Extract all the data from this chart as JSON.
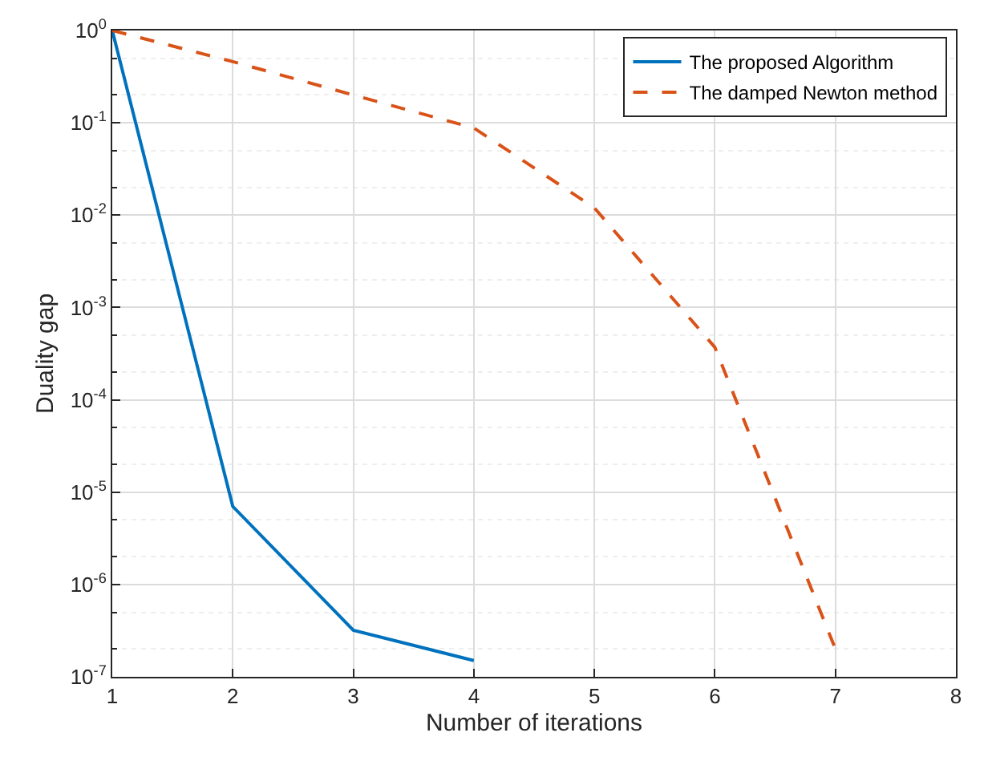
{
  "chart_data": {
    "type": "line",
    "xlabel": "Number of iterations",
    "ylabel": "Duality gap",
    "series": [
      {
        "name": "The proposed Algorithm",
        "color": "#0072bd",
        "line_style": "solid",
        "x": [
          1,
          2,
          3,
          4
        ],
        "values": [
          1,
          7e-06,
          3.2e-07,
          1.5e-07
        ]
      },
      {
        "name": "The damped Newton method",
        "color": "#d95319",
        "line_style": "dashed",
        "x": [
          1,
          2,
          3,
          4,
          5,
          6,
          7
        ],
        "values": [
          1,
          0.46,
          0.2,
          0.088,
          0.012,
          0.00037,
          2e-07
        ]
      }
    ],
    "log": "y",
    "xlim": [
      1,
      8
    ],
    "xticks": [
      1,
      2,
      3,
      4,
      5,
      6,
      7,
      8
    ],
    "ylim": [
      1e-07,
      1
    ],
    "yticks": [
      {
        "value": 1e-07,
        "label": "10$^{-7}$"
      },
      {
        "value": 1e-06,
        "label": "10$^{-6}$"
      },
      {
        "value": 1e-05,
        "label": "10$^{-5}$"
      },
      {
        "value": 0.0001,
        "label": "10$^{-4}$"
      },
      {
        "value": 0.001,
        "label": "10$^{-3}$"
      },
      {
        "value": 0.01,
        "label": "10$^{-2}$"
      },
      {
        "value": 0.1,
        "label": "10$^{-1}$"
      },
      {
        "value": 1,
        "label": "10$^{0}$"
      }
    ],
    "grid": true,
    "legend": "top right",
    "marker": "none"
  }
}
